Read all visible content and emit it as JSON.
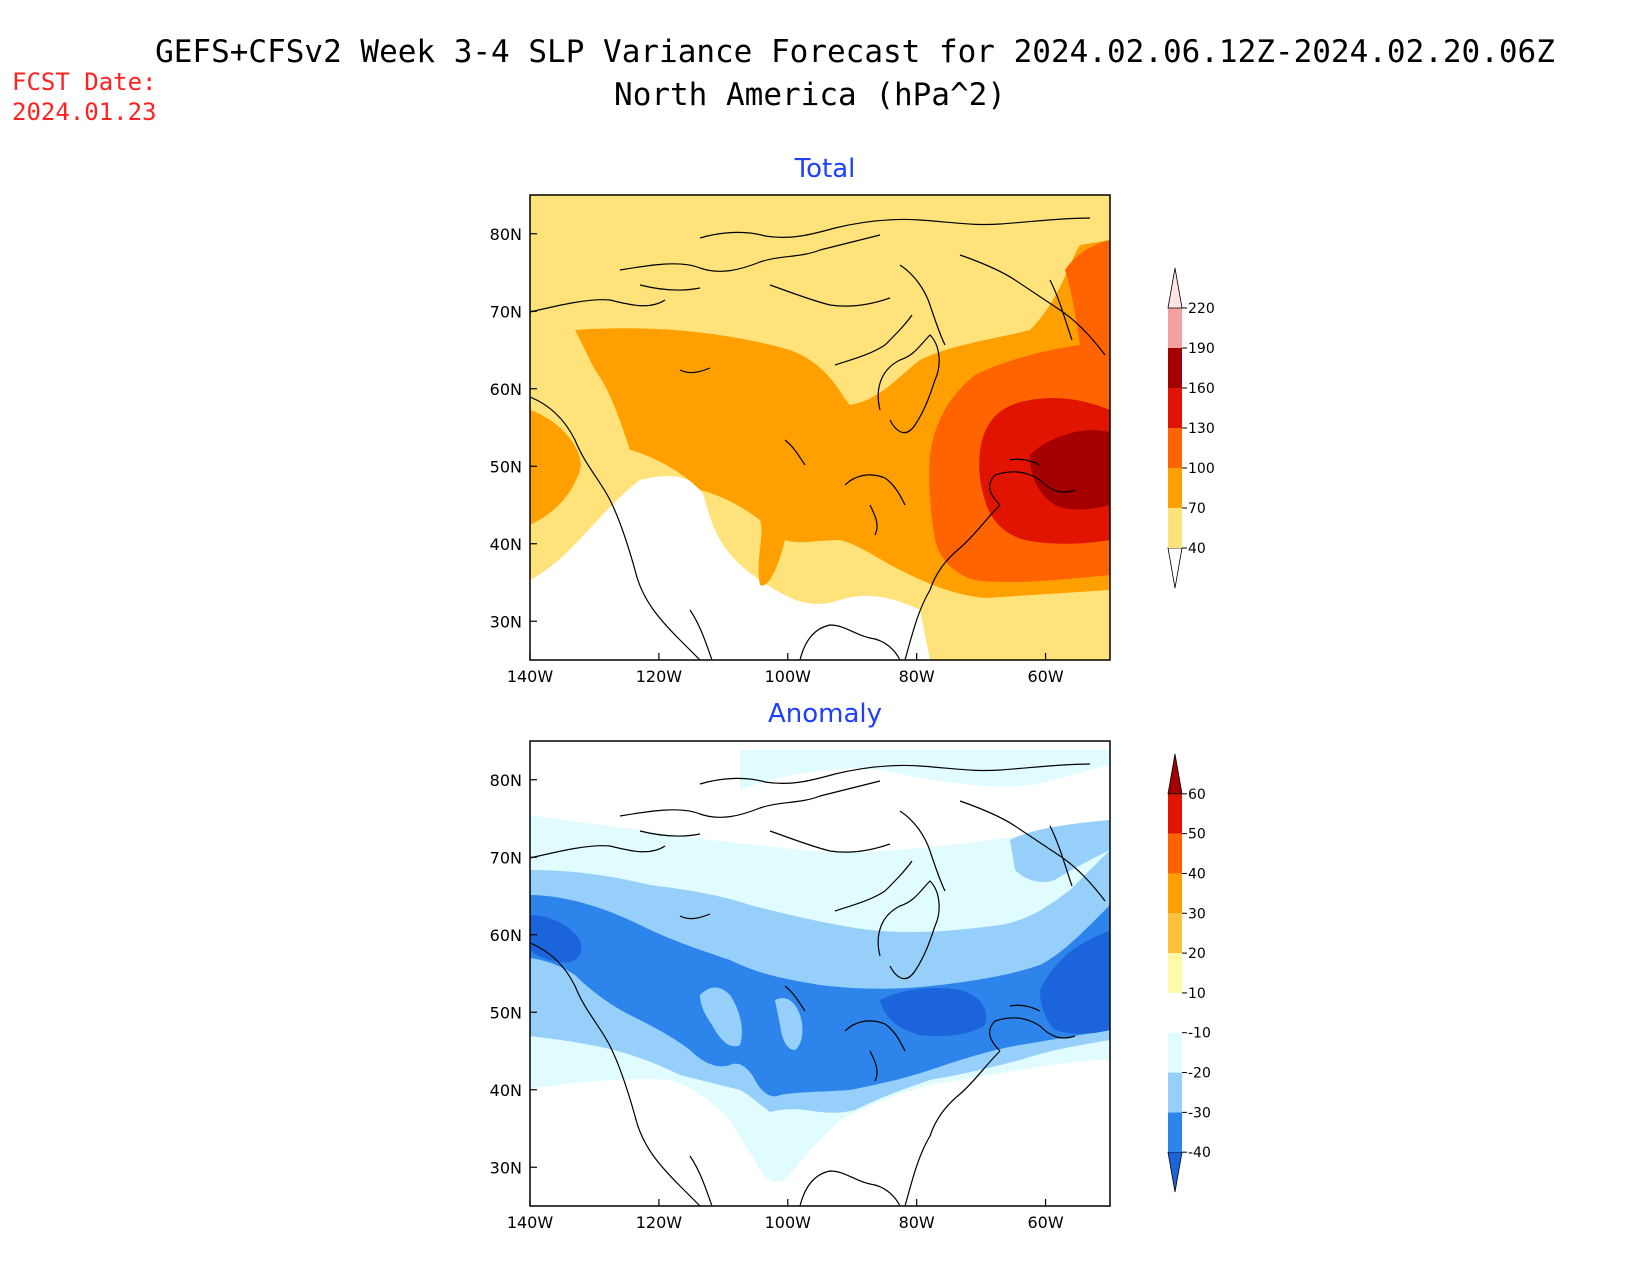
{
  "header": {
    "title_line1": "GEFS+CFSv2 Week 3-4 SLP Variance Forecast for 2024.02.06.12Z-2024.02.20.06Z",
    "title_line2": "North America (hPa^2)",
    "fcst_label": "FCST Date:",
    "fcst_date": "2024.01.23"
  },
  "colors": {
    "title": "#000000",
    "fcst": "#ff2020",
    "panel_title": "#1f3fff",
    "coast": "#000000"
  },
  "map": {
    "lon_range": [
      -140,
      -50
    ],
    "lat_range": [
      25,
      85
    ],
    "lat_ticks": [
      "80N",
      "70N",
      "60N",
      "50N",
      "40N",
      "30N"
    ],
    "lon_ticks": [
      "140W",
      "120W",
      "100W",
      "80W",
      "60W"
    ]
  },
  "panels": [
    {
      "title": "Total",
      "colorbar": {
        "labels": [
          "40",
          "70",
          "100",
          "130",
          "160",
          "190",
          "220"
        ],
        "colors": [
          "#ffffff",
          "#ffe37a",
          "#ff9f00",
          "#ff6400",
          "#e01400",
          "#a50000",
          "#f5a0a0",
          "#ffe4e4"
        ]
      }
    },
    {
      "title": "Anomaly",
      "colorbar": {
        "labels": [
          "-40",
          "-30",
          "-20",
          "-10",
          "10",
          "20",
          "30",
          "40",
          "50",
          "60"
        ],
        "colors": [
          "#1c64dc",
          "#2d84eb",
          "#96d0fa",
          "#e1fcff",
          "#ffffff",
          "#fffaa8",
          "#ffc03c",
          "#ffa000",
          "#ff6000",
          "#e11400",
          "#a50000"
        ]
      }
    }
  ]
}
